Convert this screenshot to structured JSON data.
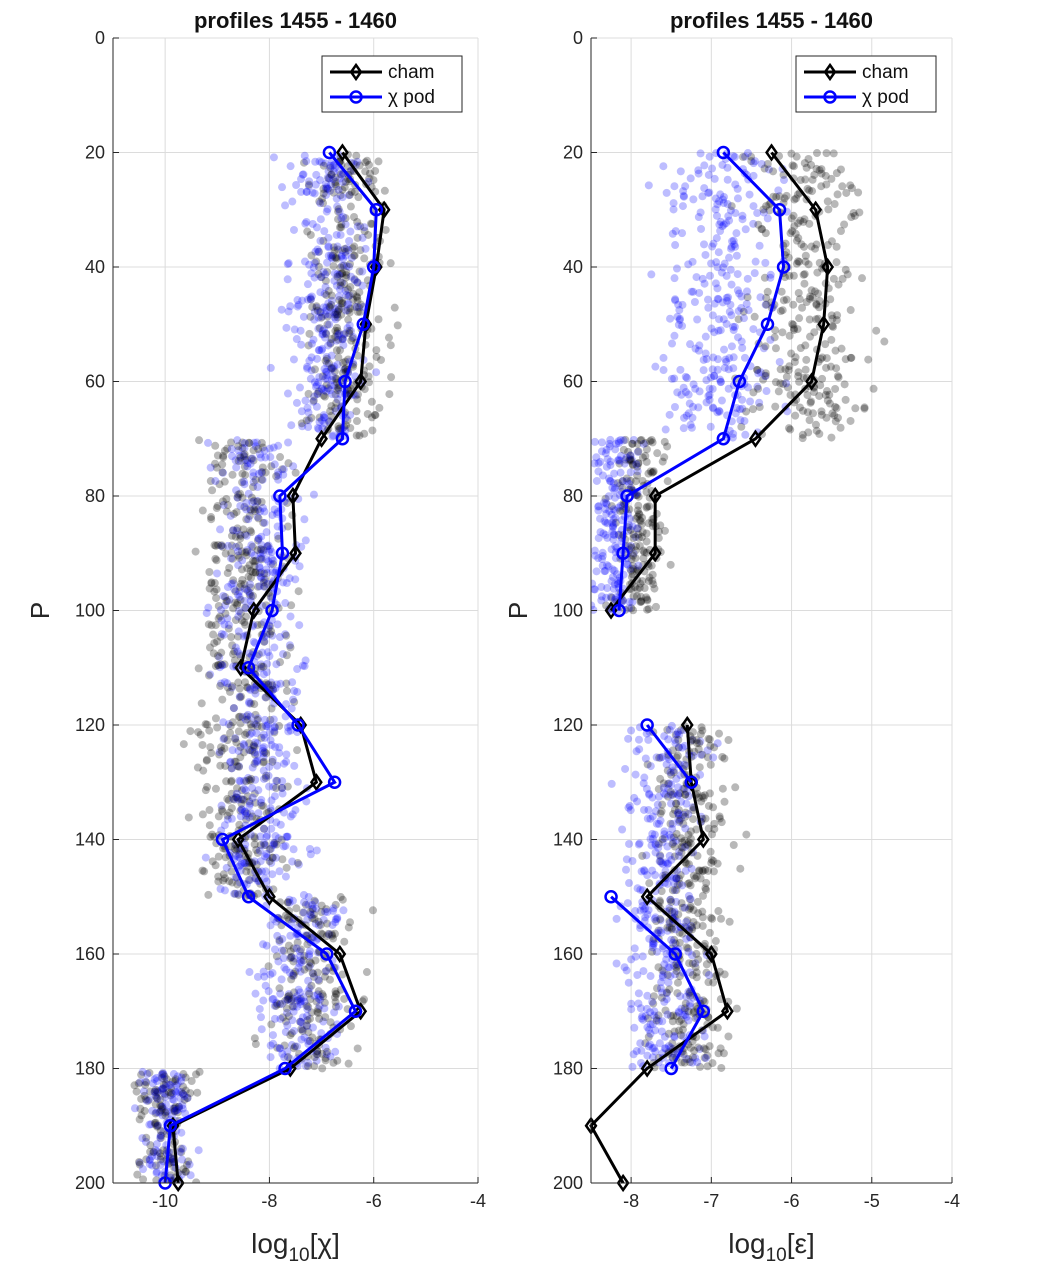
{
  "chart_data": [
    {
      "type": "scatter+line",
      "title": "profiles 1455 - 1460",
      "xlabel_base": "log",
      "xlabel_sub": "10",
      "xlabel_arg": "[χ]",
      "ylabel": "P",
      "xlim": [
        -11,
        -4
      ],
      "ylim": [
        0,
        200
      ],
      "y_reversed": true,
      "xticks": [
        -10,
        -8,
        -6,
        -4
      ],
      "yticks": [
        0,
        20,
        40,
        60,
        80,
        100,
        120,
        140,
        160,
        180,
        200
      ],
      "grid": true,
      "legend_position": "top-right",
      "legend": [
        "cham",
        "χ pod"
      ],
      "colors": {
        "cham": "#000000",
        "chipod": "#0000ff"
      },
      "series": [
        {
          "name": "cham",
          "marker": "diamond",
          "p": [
            20,
            30,
            40,
            50,
            60,
            70,
            80,
            90,
            100,
            110,
            120,
            130,
            140,
            150,
            160,
            170,
            180,
            190,
            200
          ],
          "x": [
            -6.6,
            -5.8,
            -5.95,
            -6.15,
            -6.25,
            -7.0,
            -7.55,
            -7.5,
            -8.3,
            -8.55,
            -7.4,
            -7.1,
            -8.6,
            -8.0,
            -6.65,
            -6.25,
            -7.6,
            -9.85,
            -9.75
          ]
        },
        {
          "name": "χ pod",
          "marker": "circle",
          "p": [
            20,
            30,
            40,
            50,
            60,
            70,
            80,
            90,
            100,
            110,
            120,
            130,
            140,
            150,
            160,
            170,
            180,
            190,
            200
          ],
          "x": [
            -6.85,
            -5.95,
            -6.0,
            -6.2,
            -6.55,
            -6.6,
            -7.8,
            -7.75,
            -7.95,
            -8.4,
            -7.45,
            -6.75,
            -8.9,
            -8.4,
            -6.9,
            -6.35,
            -7.7,
            -9.9,
            -10.0
          ]
        }
      ],
      "scatter_clouds": [
        {
          "p_range": [
            20,
            70
          ],
          "x_center_cham": -6.5,
          "x_center_chipod": -6.9,
          "spread": 1.2
        },
        {
          "p_range": [
            70,
            150
          ],
          "x_center_cham": -8.5,
          "x_center_chipod": -8.2,
          "spread": 1.4
        },
        {
          "p_range": [
            150,
            180
          ],
          "x_center_cham": -7.2,
          "x_center_chipod": -7.4,
          "spread": 1.3
        },
        {
          "p_range": [
            180,
            200
          ],
          "x_center_cham": -10.0,
          "x_center_chipod": -10.0,
          "spread": 0.9
        }
      ]
    },
    {
      "type": "scatter+line",
      "title": "profiles 1455 - 1460",
      "xlabel_base": "log",
      "xlabel_sub": "10",
      "xlabel_arg": "[ε]",
      "ylabel": "P",
      "xlim": [
        -8.5,
        -4
      ],
      "ylim": [
        0,
        200
      ],
      "y_reversed": true,
      "xticks": [
        -8,
        -7,
        -6,
        -5,
        -4
      ],
      "yticks": [
        0,
        20,
        40,
        60,
        80,
        100,
        120,
        140,
        160,
        180,
        200
      ],
      "grid": true,
      "legend_position": "top-right",
      "legend": [
        "cham",
        "χ pod"
      ],
      "colors": {
        "cham": "#000000",
        "chipod": "#0000ff"
      },
      "series": [
        {
          "name": "cham",
          "marker": "diamond",
          "segments": [
            {
              "p": [
                20,
                30,
                40,
                50,
                60,
                70,
                80,
                90,
                100
              ],
              "x": [
                -6.25,
                -5.7,
                -5.55,
                -5.6,
                -5.75,
                -6.45,
                -7.7,
                -7.7,
                -8.25
              ]
            },
            {
              "p": [
                120,
                130,
                140,
                150,
                160,
                170,
                180,
                190,
                200
              ],
              "x": [
                -7.3,
                -7.25,
                -7.1,
                -7.8,
                -7.0,
                -6.8,
                -7.8,
                -8.5,
                -8.1
              ]
            }
          ]
        },
        {
          "name": "χ pod",
          "marker": "circle",
          "segments": [
            {
              "p": [
                20,
                30,
                40,
                50,
                60,
                70,
                80,
                90,
                100
              ],
              "x": [
                -6.85,
                -6.15,
                -6.1,
                -6.3,
                -6.65,
                -6.85,
                -8.05,
                -8.1,
                -8.15
              ]
            },
            {
              "p": [
                120,
                130
              ],
              "x": [
                -7.8,
                -7.25
              ]
            },
            {
              "p": [
                150,
                160,
                170,
                180
              ],
              "x": [
                -8.25,
                -7.45,
                -7.1,
                -7.5
              ]
            }
          ]
        }
      ],
      "scatter_clouds": [
        {
          "p_range": [
            20,
            70
          ],
          "x_center_cham": -5.8,
          "x_center_chipod": -6.9,
          "spread": 1.2
        },
        {
          "p_range": [
            70,
            100
          ],
          "x_center_cham": -7.9,
          "x_center_chipod": -8.2,
          "spread": 0.5
        },
        {
          "p_range": [
            120,
            180
          ],
          "x_center_cham": -7.3,
          "x_center_chipod": -7.6,
          "spread": 0.8
        }
      ]
    }
  ]
}
